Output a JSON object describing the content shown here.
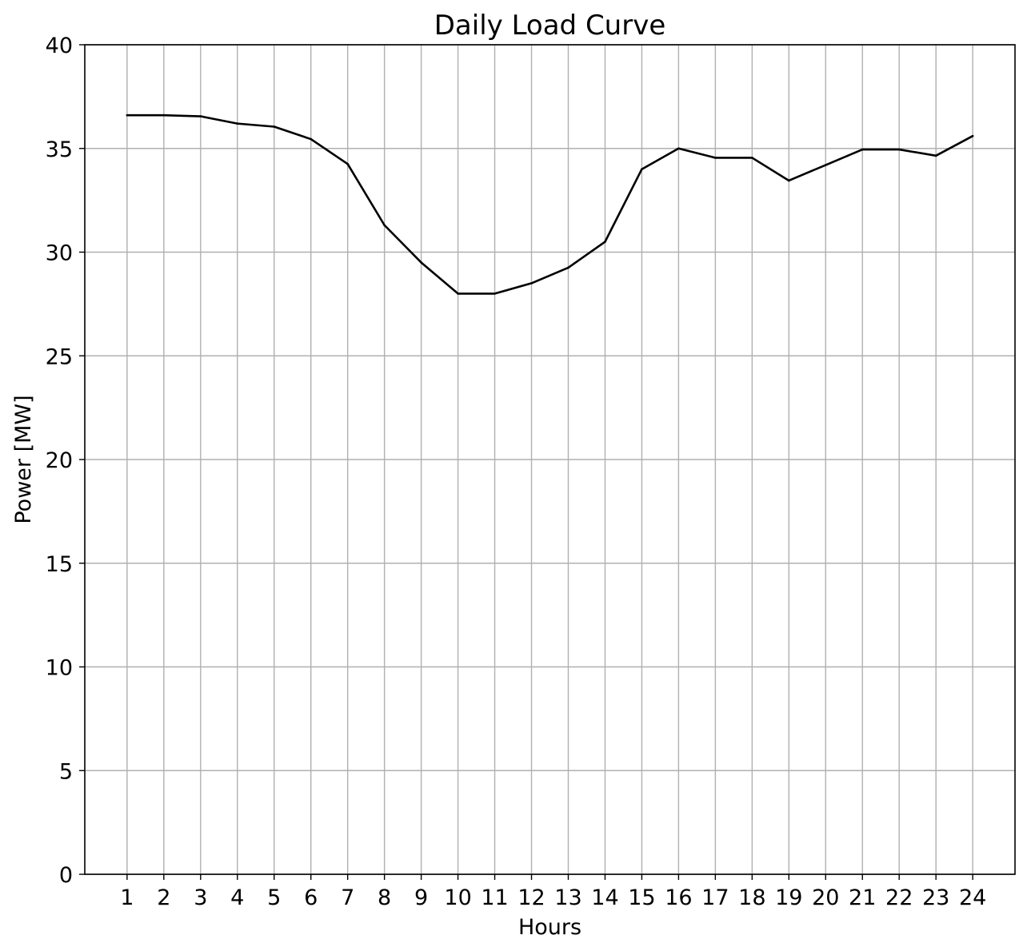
{
  "chart_data": {
    "type": "line",
    "title": "Daily Load Curve",
    "xlabel": "Hours",
    "ylabel": "Power [MW]",
    "x": [
      1,
      2,
      3,
      4,
      5,
      6,
      7,
      8,
      9,
      10,
      11,
      12,
      13,
      14,
      15,
      16,
      17,
      18,
      19,
      20,
      21,
      22,
      23,
      24
    ],
    "x_tick_labels": [
      "1",
      "2",
      "3",
      "4",
      "5",
      "6",
      "7",
      "8",
      "9",
      "10",
      "11",
      "12",
      "13",
      "14",
      "15",
      "16",
      "17",
      "18",
      "19",
      "20",
      "21",
      "22",
      "23",
      "24"
    ],
    "series": [
      {
        "values": [
          36.6,
          36.6,
          36.55,
          36.2,
          36.05,
          35.45,
          34.25,
          31.3,
          29.5,
          28.0,
          28.0,
          28.5,
          29.25,
          30.5,
          34.0,
          35.0,
          34.55,
          34.55,
          33.45,
          34.2,
          34.95,
          34.95,
          34.65,
          35.6
        ],
        "color": "#000000"
      }
    ],
    "xlim": [
      -0.15,
      25.15
    ],
    "ylim": [
      0,
      40
    ],
    "y_ticks": [
      0,
      5,
      10,
      15,
      20,
      25,
      30,
      35,
      40
    ],
    "y_tick_labels": [
      "0",
      "5",
      "10",
      "15",
      "20",
      "25",
      "30",
      "35",
      "40"
    ],
    "grid": true,
    "grid_color": "#b0b0b0",
    "line_color": "#000000",
    "legend": "none"
  }
}
